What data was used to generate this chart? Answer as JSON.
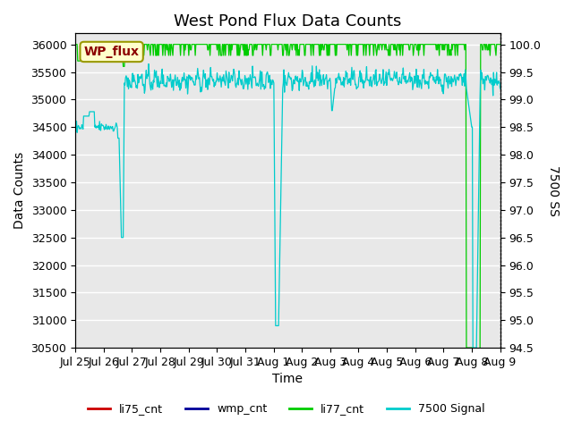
{
  "title": "West Pond Flux Data Counts",
  "xlabel": "Time",
  "ylabel_left": "Data Counts",
  "ylabel_right": "7500 SS",
  "ylim_left": [
    30500,
    36200
  ],
  "ylim_right": [
    94.5,
    100.2
  ],
  "yticks_left": [
    30500,
    31000,
    31500,
    32000,
    32500,
    33000,
    33500,
    34000,
    34500,
    35000,
    35500,
    36000
  ],
  "yticks_right": [
    94.5,
    95.0,
    95.5,
    96.0,
    96.5,
    97.0,
    97.5,
    98.0,
    98.5,
    99.0,
    99.5,
    100.0
  ],
  "xtick_labels": [
    "Jul 25",
    "Jul 26",
    "Jul 27",
    "Jul 28",
    "Jul 29",
    "Jul 30",
    "Jul 31",
    "Aug 1",
    "Aug 2",
    "Aug 3",
    "Aug 4",
    "Aug 5",
    "Aug 6",
    "Aug 7",
    "Aug 8",
    "Aug 9"
  ],
  "color_li75": "#cc0000",
  "color_wmp": "#000099",
  "color_li77": "#00cc00",
  "color_7500": "#00cccc",
  "annotation_text": "WP_flux",
  "bg_color": "#e8e8e8",
  "fig_bg": "#ffffff",
  "grid_color": "#ffffff",
  "title_fontsize": 13,
  "axis_fontsize": 10,
  "tick_fontsize": 9
}
